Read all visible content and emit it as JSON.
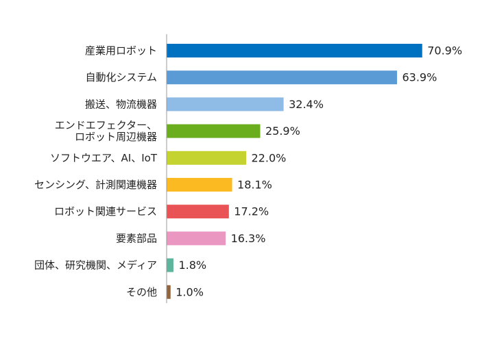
{
  "chart_data": {
    "type": "bar",
    "orientation": "horizontal",
    "categories": [
      [
        "産業用ロボット"
      ],
      [
        "自動化システム"
      ],
      [
        "搬送、物流機器"
      ],
      [
        "エンドエフェクター、",
        "ロボット周辺機器"
      ],
      [
        "ソフトウエア、AI、IoT"
      ],
      [
        "センシング、計測関連機器"
      ],
      [
        "ロボット関連サービス"
      ],
      [
        "要素部品"
      ],
      [
        "団体、研究機関、メディア"
      ],
      [
        "その他"
      ]
    ],
    "values": [
      70.9,
      63.9,
      32.4,
      25.9,
      22.0,
      18.1,
      17.2,
      16.3,
      1.8,
      1.0
    ],
    "value_labels": [
      "70.9%",
      "63.9%",
      "32.4%",
      "25.9%",
      "22.0%",
      "18.1%",
      "17.2%",
      "16.3%",
      "1.8%",
      "1.0%"
    ],
    "colors": [
      "#0070C0",
      "#5B9BD5",
      "#8EBCE6",
      "#6AAE1E",
      "#C5D330",
      "#FBBA21",
      "#E95355",
      "#EA97C1",
      "#5FB59B",
      "#93653E"
    ],
    "axis_color": "#999999",
    "xlim": [
      0,
      100
    ],
    "grid": false,
    "legend": "none",
    "title": "",
    "xlabel": "",
    "ylabel": ""
  }
}
